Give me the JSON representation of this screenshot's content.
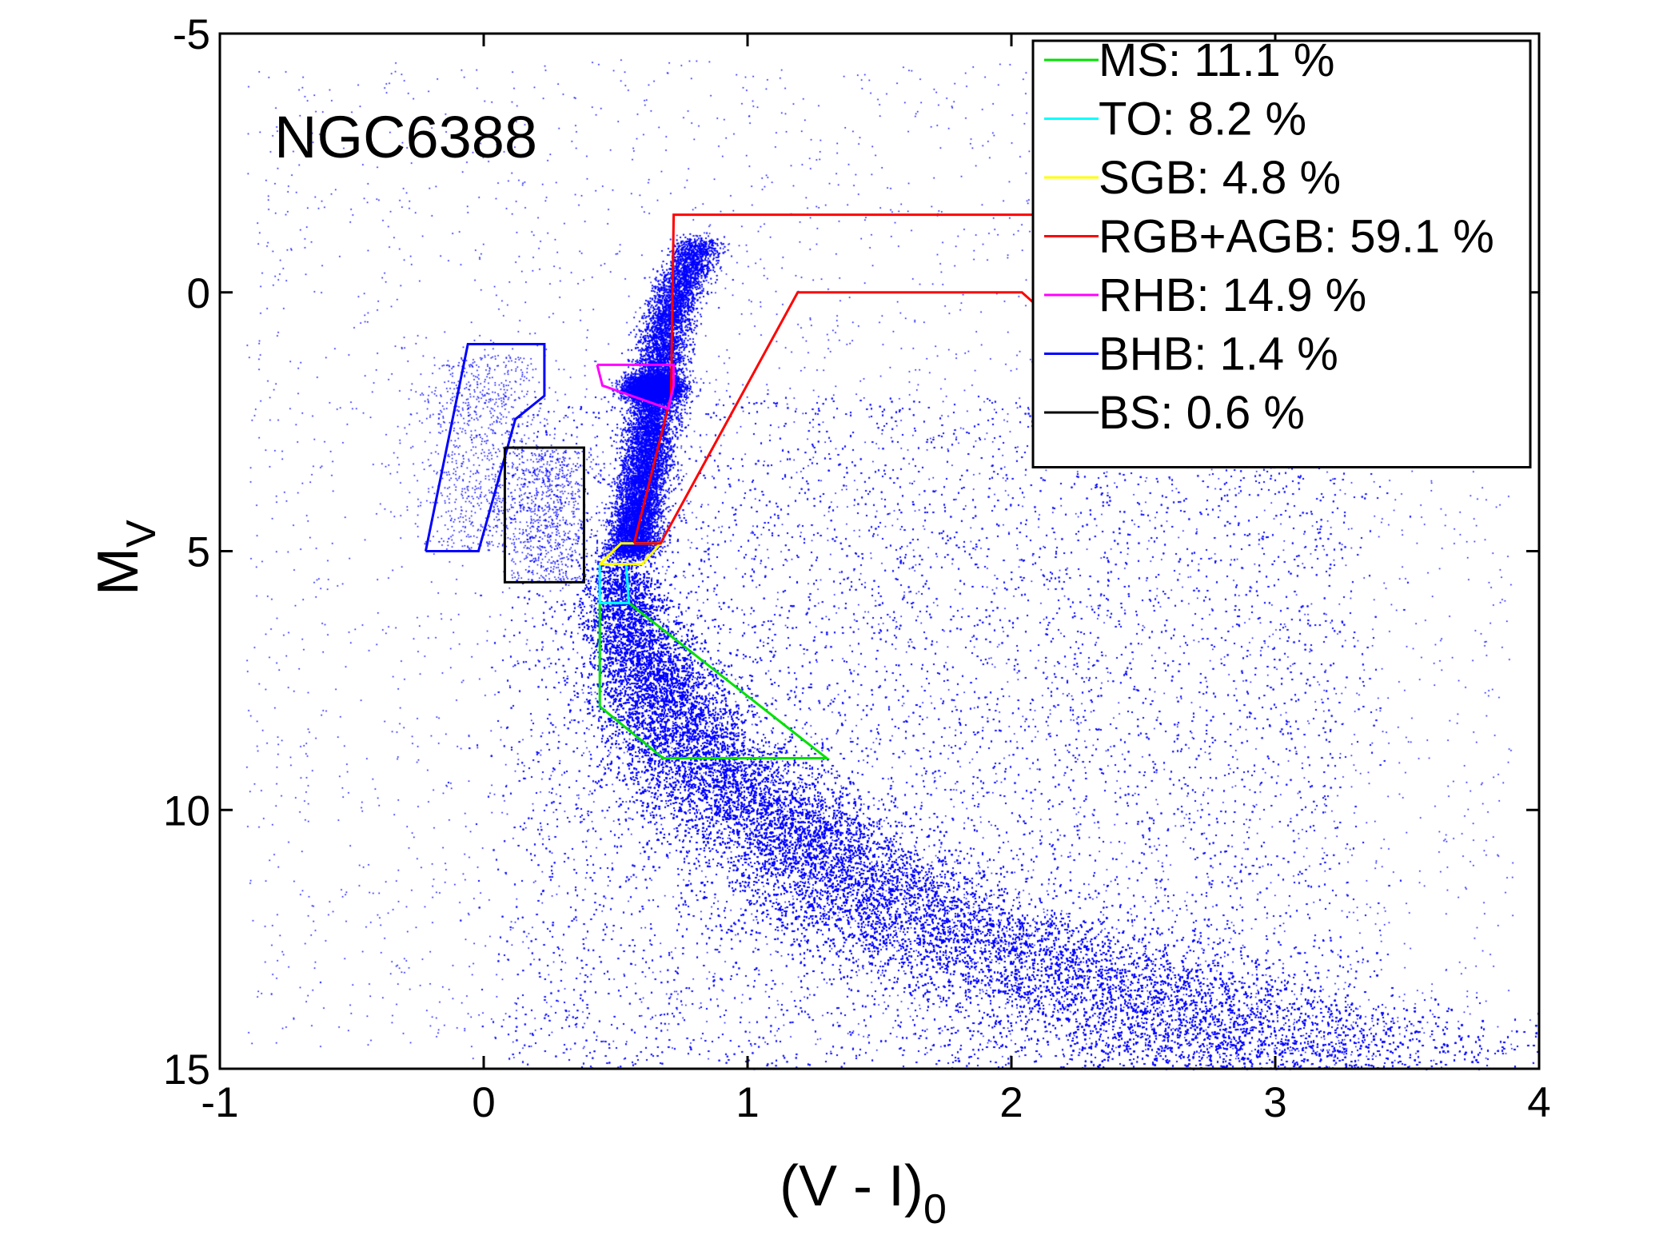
{
  "chart_data": {
    "type": "scatter",
    "annotation": "NGC6388",
    "xlabel": {
      "main": "(V - I)",
      "sub": "0"
    },
    "ylabel": {
      "main": "M",
      "sub": "V"
    },
    "xlim": [
      -1,
      4
    ],
    "ylim": [
      -5,
      15
    ],
    "y_reversed": true,
    "xticks": [
      -1,
      0,
      1,
      2,
      3,
      4
    ],
    "xtick_labels": [
      "-1",
      "0",
      "1",
      "2",
      "3",
      "4"
    ],
    "yticks": [
      -5,
      0,
      5,
      10,
      15
    ],
    "ytick_labels": [
      "-5",
      "0",
      "5",
      "10",
      "15"
    ],
    "grid": false,
    "legend_position": "top-right",
    "point_color": "#0000ff",
    "regions": [
      {
        "id": "ms",
        "label": "MS: 11.1 %",
        "color": "#00e000",
        "polygon": [
          [
            0.44,
            6.0
          ],
          [
            0.55,
            6.0
          ],
          [
            1.3,
            9.0
          ],
          [
            0.68,
            9.0
          ],
          [
            0.44,
            8.0
          ],
          [
            0.44,
            6.0
          ]
        ]
      },
      {
        "id": "to",
        "label": "TO: 8.2 %",
        "color": "#00ffff",
        "polygon": [
          [
            0.44,
            5.25
          ],
          [
            0.54,
            5.25
          ],
          [
            0.55,
            6.0
          ],
          [
            0.44,
            6.0
          ],
          [
            0.44,
            5.25
          ]
        ]
      },
      {
        "id": "sgb",
        "label": "SGB: 4.8 %",
        "color": "#ffff00",
        "polygon": [
          [
            0.44,
            5.25
          ],
          [
            0.52,
            4.85
          ],
          [
            0.67,
            4.85
          ],
          [
            0.6,
            5.25
          ],
          [
            0.44,
            5.25
          ]
        ]
      },
      {
        "id": "rgb_agb",
        "label": "RGB+AGB: 59.1 %",
        "color": "#ff0000",
        "polygon": [
          [
            0.57,
            4.85
          ],
          [
            0.71,
            2.0
          ],
          [
            0.72,
            -1.5
          ],
          [
            2.15,
            -1.5
          ],
          [
            2.15,
            0.5
          ],
          [
            2.04,
            0.0
          ],
          [
            1.19,
            0.0
          ],
          [
            0.67,
            4.85
          ],
          [
            0.57,
            4.85
          ]
        ]
      },
      {
        "id": "rhb",
        "label": "RHB: 14.9 %",
        "color": "#ff00ff",
        "polygon": [
          [
            0.43,
            1.4
          ],
          [
            0.72,
            1.4
          ],
          [
            0.72,
            1.8
          ],
          [
            0.7,
            2.25
          ],
          [
            0.45,
            1.8
          ],
          [
            0.43,
            1.4
          ]
        ]
      },
      {
        "id": "bhb",
        "label": "BHB: 1.4 %",
        "color": "#0000ff",
        "polygon": [
          [
            -0.22,
            5.0
          ],
          [
            -0.06,
            1.0
          ],
          [
            0.23,
            1.0
          ],
          [
            0.23,
            2.0
          ],
          [
            0.12,
            2.45
          ],
          [
            -0.02,
            5.0
          ],
          [
            -0.22,
            5.0
          ]
        ]
      },
      {
        "id": "bs",
        "label": "BS: 0.6 %",
        "color": "#000000",
        "polygon": [
          [
            0.08,
            3.0
          ],
          [
            0.38,
            3.0
          ],
          [
            0.38,
            5.6
          ],
          [
            0.08,
            5.6
          ],
          [
            0.08,
            3.0
          ]
        ]
      }
    ]
  }
}
